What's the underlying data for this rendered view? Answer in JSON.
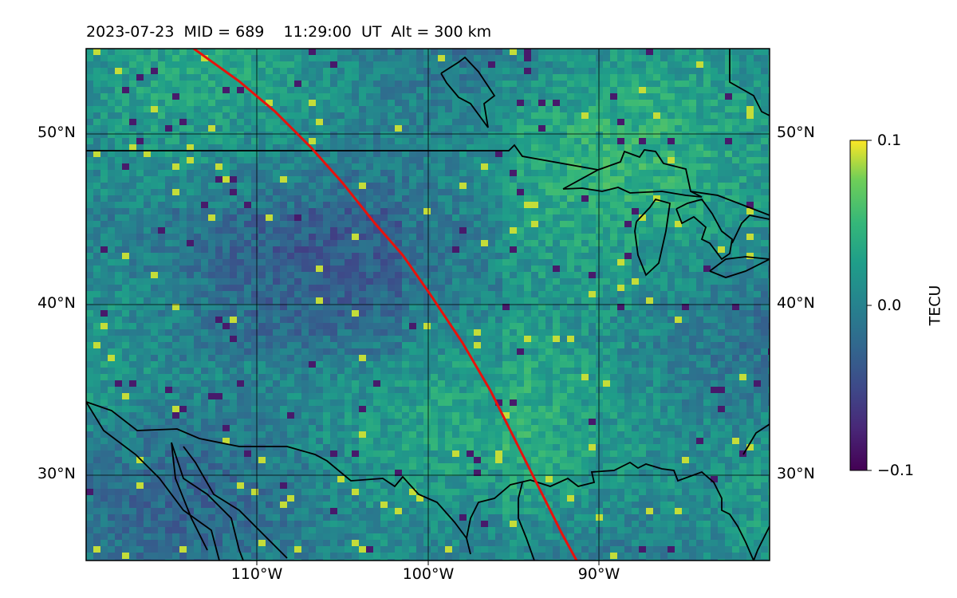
{
  "title": "2023-07-23  MID = 689    11:29:00  UT  Alt = 300 km",
  "lat_labels": [
    "50°N",
    "40°N",
    "30°N"
  ],
  "lon_labels": [
    "110°W",
    "100°W",
    "90°W"
  ],
  "colorbar": {
    "label": "TECU",
    "ticks": [
      "0.1",
      "0.0",
      "−0.1"
    ],
    "min": -0.1,
    "max": 0.1
  },
  "colors": {
    "track": "#e8120c",
    "coast": "#000000",
    "grid": "#000000"
  },
  "extent": {
    "lon_min": -120,
    "lon_max": -80,
    "lat_min": 25,
    "lat_max": 55
  }
}
